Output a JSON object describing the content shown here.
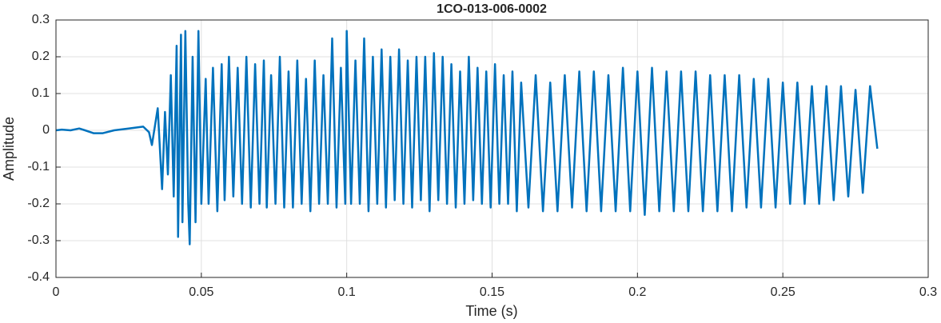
{
  "chart_data": {
    "type": "line",
    "title": "1CO-013-006-0002",
    "xlabel": "Time (s)",
    "ylabel": "Amplitude",
    "grid": true,
    "xlim": [
      0,
      0.3
    ],
    "ylim": [
      -0.4,
      0.3
    ],
    "xticks": [
      0,
      0.05,
      0.1,
      0.15,
      0.2,
      0.25,
      0.3
    ],
    "yticks": [
      -0.4,
      -0.3,
      -0.2,
      -0.1,
      0,
      0.1,
      0.2,
      0.3
    ],
    "series": [
      {
        "color": "#0072bd",
        "x": [
          0,
          0.002,
          0.005,
          0.008,
          0.01,
          0.013,
          0.016,
          0.02,
          0.025,
          0.03,
          0.032,
          0.033,
          0.035,
          0.0365,
          0.0375,
          0.0385,
          0.0395,
          0.0405,
          0.0415,
          0.042,
          0.043,
          0.0435,
          0.0445,
          0.0455,
          0.046,
          0.047,
          0.048,
          0.049,
          0.05,
          0.0515,
          0.0525,
          0.054,
          0.0555,
          0.057,
          0.058,
          0.0595,
          0.061,
          0.0625,
          0.064,
          0.0655,
          0.067,
          0.0685,
          0.07,
          0.0715,
          0.0725,
          0.074,
          0.0755,
          0.077,
          0.0785,
          0.08,
          0.0815,
          0.083,
          0.0845,
          0.086,
          0.0875,
          0.089,
          0.0905,
          0.092,
          0.0935,
          0.095,
          0.0965,
          0.098,
          0.0995,
          0.1,
          0.1015,
          0.103,
          0.1045,
          0.106,
          0.1075,
          0.109,
          0.1105,
          0.112,
          0.1135,
          0.115,
          0.1165,
          0.118,
          0.1195,
          0.121,
          0.1225,
          0.124,
          0.1255,
          0.127,
          0.1285,
          0.13,
          0.1315,
          0.133,
          0.1345,
          0.136,
          0.1375,
          0.139,
          0.1405,
          0.142,
          0.1435,
          0.145,
          0.1465,
          0.148,
          0.1495,
          0.151,
          0.1525,
          0.154,
          0.1555,
          0.157,
          0.1585,
          0.16,
          0.1625,
          0.165,
          0.1675,
          0.17,
          0.1725,
          0.175,
          0.1775,
          0.18,
          0.1825,
          0.185,
          0.1875,
          0.19,
          0.1925,
          0.195,
          0.1975,
          0.2,
          0.2025,
          0.205,
          0.2075,
          0.21,
          0.2125,
          0.215,
          0.2175,
          0.22,
          0.2225,
          0.225,
          0.2275,
          0.23,
          0.2325,
          0.235,
          0.2375,
          0.24,
          0.2425,
          0.245,
          0.2475,
          0.25,
          0.2525,
          0.255,
          0.2575,
          0.26,
          0.2625,
          0.265,
          0.2675,
          0.27,
          0.2725,
          0.275,
          0.2775,
          0.28,
          0.2825
        ],
        "values": [
          0,
          0.002,
          0,
          0.005,
          0,
          -0.008,
          -0.008,
          0,
          0.005,
          0.01,
          -0.005,
          -0.04,
          0.06,
          -0.16,
          0.05,
          -0.12,
          0.15,
          -0.18,
          0.23,
          -0.29,
          0.26,
          -0.25,
          0.27,
          -0.2,
          -0.31,
          0.2,
          -0.25,
          0.27,
          -0.2,
          0.14,
          -0.2,
          0.17,
          -0.22,
          0.18,
          -0.19,
          0.2,
          -0.18,
          0.17,
          -0.2,
          0.2,
          -0.21,
          0.18,
          -0.2,
          0.19,
          -0.21,
          0.15,
          -0.2,
          0.2,
          -0.21,
          0.16,
          -0.21,
          0.19,
          -0.2,
          0.14,
          -0.22,
          0.19,
          -0.2,
          0.15,
          -0.2,
          0.25,
          -0.21,
          0.17,
          -0.2,
          0.27,
          -0.2,
          0.19,
          -0.2,
          0.25,
          -0.22,
          0.2,
          -0.2,
          0.22,
          -0.21,
          0.2,
          -0.19,
          0.22,
          -0.2,
          0.19,
          -0.21,
          0.2,
          -0.19,
          0.2,
          -0.22,
          0.21,
          -0.19,
          0.2,
          -0.2,
          0.18,
          -0.21,
          0.16,
          -0.2,
          0.2,
          -0.19,
          0.17,
          -0.2,
          0.16,
          -0.21,
          0.18,
          -0.2,
          0.15,
          -0.2,
          0.16,
          -0.22,
          0.13,
          -0.21,
          0.15,
          -0.22,
          0.13,
          -0.22,
          0.15,
          -0.21,
          0.16,
          -0.22,
          0.16,
          -0.22,
          0.15,
          -0.22,
          0.17,
          -0.22,
          0.16,
          -0.23,
          0.17,
          -0.22,
          0.16,
          -0.22,
          0.16,
          -0.22,
          0.16,
          -0.22,
          0.15,
          -0.22,
          0.15,
          -0.22,
          0.15,
          -0.21,
          0.14,
          -0.21,
          0.14,
          -0.21,
          0.13,
          -0.2,
          0.13,
          -0.2,
          0.12,
          -0.2,
          0.12,
          -0.19,
          0.12,
          -0.18,
          0.11,
          -0.17,
          0.12,
          -0.05
        ]
      }
    ]
  }
}
